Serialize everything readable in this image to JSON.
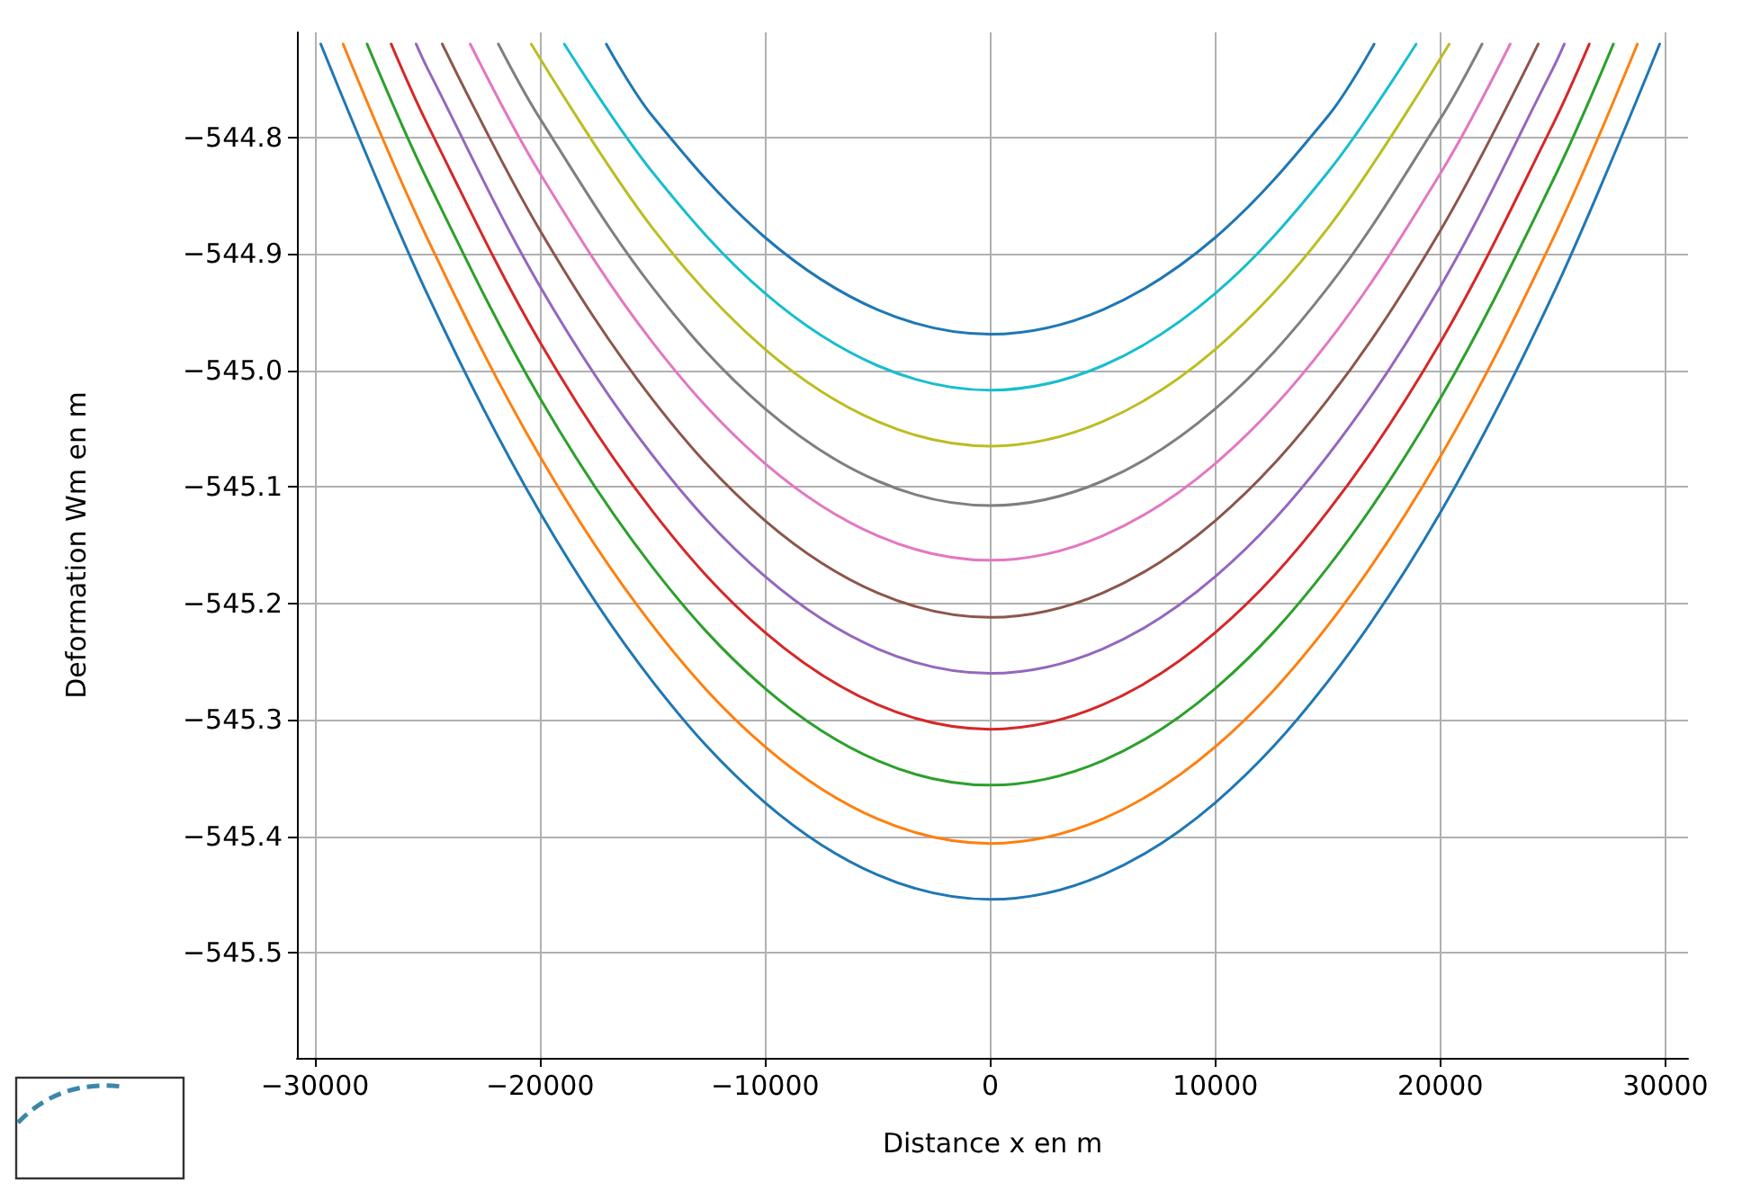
{
  "chart_data": {
    "type": "line",
    "xlabel": "Distance x en m",
    "ylabel": "Deformation Wm en m",
    "xlim": [
      -30800,
      31000
    ],
    "xticks": [
      -30000,
      -20000,
      -10000,
      0,
      10000,
      20000,
      30000
    ],
    "ylim": [
      -545.59,
      -544.71
    ],
    "yticks": [
      -545.5,
      -545.4,
      -545.3,
      -545.2,
      -545.1,
      {
        "value": -545.0,
        "label": "−545.0"
      },
      -544.9,
      -544.8
    ],
    "grid": true,
    "marker": "none",
    "line_style": "solid",
    "series": [
      {
        "color": "#1f77b4",
        "x": [
          -29740,
          -25000,
          -20000,
          -15000,
          -10000,
          -5000,
          0,
          5000,
          10000,
          15000,
          20000,
          25000,
          29740
        ],
        "values": [
          -544.72,
          -544.935,
          -545.122,
          -545.267,
          -545.371,
          -545.433,
          -545.454,
          -545.433,
          -545.371,
          -545.267,
          -545.122,
          -544.935,
          -544.72
        ]
      },
      {
        "color": "#ff7f0e",
        "x": [
          -28750,
          -25000,
          -20000,
          -15000,
          -10000,
          -5000,
          0,
          5000,
          10000,
          15000,
          20000,
          25000,
          28750
        ],
        "values": [
          -544.72,
          -544.887,
          -545.074,
          -545.219,
          -545.323,
          -545.385,
          -545.406,
          -545.385,
          -545.323,
          -545.219,
          -545.074,
          -544.887,
          -544.72
        ]
      },
      {
        "color": "#2ca02c",
        "x": [
          -27685,
          -25000,
          -20000,
          -15000,
          -10000,
          -5000,
          0,
          5000,
          10000,
          15000,
          20000,
          25000,
          27685
        ],
        "values": [
          -544.72,
          -544.837,
          -545.024,
          -545.169,
          -545.273,
          -545.335,
          -545.356,
          -545.335,
          -545.273,
          -545.169,
          -545.024,
          -544.837,
          -544.72
        ]
      },
      {
        "color": "#d62728",
        "x": [
          -26615,
          -25000,
          -20000,
          -15000,
          -10000,
          -5000,
          0,
          5000,
          10000,
          15000,
          20000,
          25000,
          26615
        ],
        "values": [
          -544.72,
          -544.789,
          -544.976,
          -545.121,
          -545.225,
          -545.287,
          -545.308,
          -545.287,
          -545.225,
          -545.121,
          -544.976,
          -544.789,
          -544.72
        ]
      },
      {
        "color": "#9467bd",
        "x": [
          -25505,
          -25000,
          -20000,
          -15000,
          -10000,
          -5000,
          0,
          5000,
          10000,
          15000,
          20000,
          25000,
          25505
        ],
        "values": [
          -544.72,
          -544.741,
          -544.928,
          -545.073,
          -545.177,
          -545.239,
          -545.26,
          -545.239,
          -545.177,
          -545.073,
          -544.928,
          -544.741,
          -544.72
        ]
      },
      {
        "color": "#8c564b",
        "x": [
          -24345,
          -20000,
          -15000,
          -10000,
          -5000,
          0,
          5000,
          10000,
          15000,
          20000,
          24345
        ],
        "values": [
          -544.72,
          -544.88,
          -545.025,
          -545.129,
          -545.191,
          -545.212,
          -545.191,
          -545.129,
          -545.025,
          -544.88,
          -544.72
        ]
      },
      {
        "color": "#e377c2",
        "x": [
          -23100,
          -20000,
          -15000,
          -10000,
          -5000,
          0,
          5000,
          10000,
          15000,
          20000,
          23100
        ],
        "values": [
          -544.72,
          -544.831,
          -544.976,
          -545.08,
          -545.142,
          -545.163,
          -545.142,
          -545.08,
          -544.976,
          -544.831,
          -544.72
        ]
      },
      {
        "color": "#7f7f7f",
        "x": [
          -21850,
          -20000,
          -15000,
          -10000,
          -5000,
          0,
          5000,
          10000,
          15000,
          20000,
          21850
        ],
        "values": [
          -544.72,
          -544.784,
          -544.929,
          -545.033,
          -545.095,
          -545.116,
          -545.095,
          -545.033,
          -544.929,
          -544.784,
          -544.72
        ]
      },
      {
        "color": "#bcbd22",
        "x": [
          -20390,
          -15000,
          -10000,
          -5000,
          0,
          5000,
          10000,
          15000,
          20390
        ],
        "values": [
          -544.72,
          -544.878,
          -544.982,
          -545.044,
          -545.065,
          -545.044,
          -544.982,
          -544.878,
          -544.72
        ]
      },
      {
        "color": "#17becf",
        "x": [
          -18920,
          -15000,
          -10000,
          -5000,
          0,
          5000,
          10000,
          15000,
          18920
        ],
        "values": [
          -544.72,
          -544.83,
          -544.934,
          -544.996,
          -545.017,
          -544.996,
          -544.934,
          -544.83,
          -544.72
        ]
      },
      {
        "color": "#1f77b4",
        "x": [
          -17055,
          -15000,
          -10000,
          -5000,
          0,
          5000,
          10000,
          15000,
          17055
        ],
        "values": [
          -544.72,
          -544.782,
          -544.886,
          -544.948,
          -544.969,
          -544.948,
          -544.886,
          -544.782,
          -544.72
        ]
      }
    ]
  }
}
